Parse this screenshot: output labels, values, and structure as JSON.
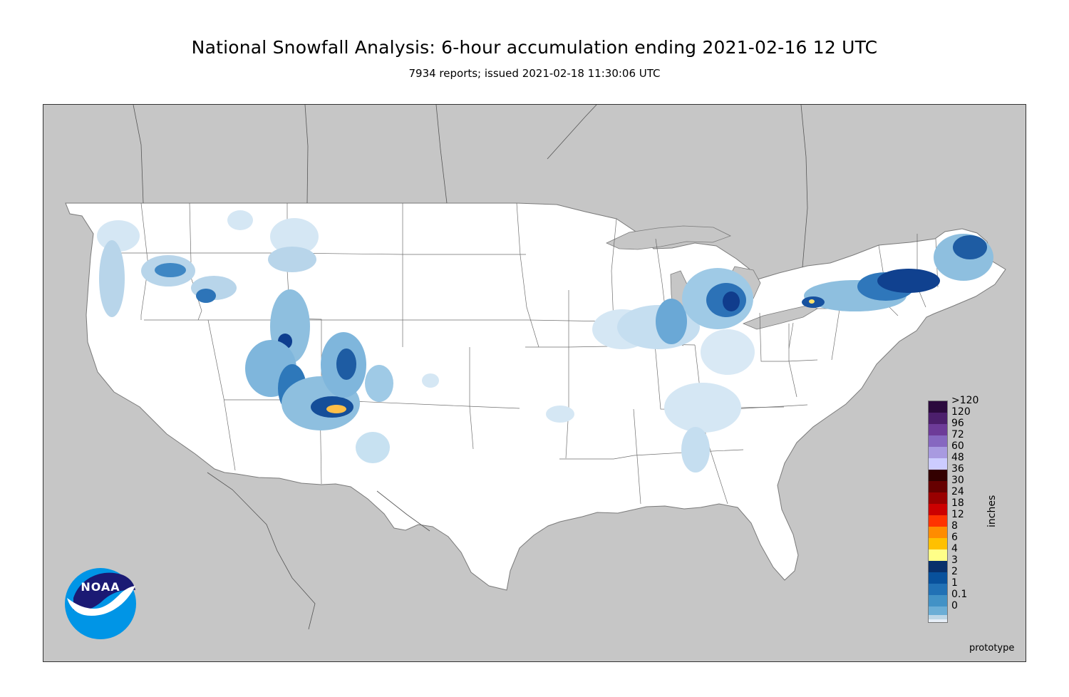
{
  "header": {
    "title": "National Snowfall Analysis: 6-hour accumulation ending 2021-02-16 12 UTC",
    "subtitle": "7934 reports; issued 2021-02-18 11:30:06 UTC"
  },
  "map": {
    "region": "Contiguous United States",
    "land_outside_analysis_color": "#c6c6c6",
    "analysis_area_color": "#ffffff",
    "boundary_color": "#444444",
    "footer_note": "prototype"
  },
  "legend": {
    "unit": "inches",
    "classes": [
      {
        "label": ">120",
        "color": "#2b0a3d"
      },
      {
        "label": "120",
        "color": "#4c1f6c"
      },
      {
        "label": "96",
        "color": "#6d3b98"
      },
      {
        "label": "72",
        "color": "#8667c0"
      },
      {
        "label": "60",
        "color": "#a89ae0"
      },
      {
        "label": "48",
        "color": "#ccccff"
      },
      {
        "label": "36",
        "color": "#330000"
      },
      {
        "label": "30",
        "color": "#660000"
      },
      {
        "label": "24",
        "color": "#990000"
      },
      {
        "label": "18",
        "color": "#cc0000"
      },
      {
        "label": "12",
        "color": "#ff3300"
      },
      {
        "label": "8",
        "color": "#ff8c00"
      },
      {
        "label": "6",
        "color": "#ffc000"
      },
      {
        "label": "4",
        "color": "#ffff88"
      },
      {
        "label": "3",
        "color": "#08306b"
      },
      {
        "label": "2",
        "color": "#08519c"
      },
      {
        "label": "1",
        "color": "#2171b5"
      },
      {
        "label": "0.1",
        "color": "#4292c6"
      },
      {
        "label": "0",
        "color": "#6baed6"
      }
    ],
    "visible_labels": [
      ">120",
      "120",
      "96",
      "72",
      "60",
      "48",
      "36",
      "30",
      "24",
      "18",
      "12",
      "8",
      "6",
      "4",
      "3",
      "2",
      "1",
      "0.1",
      "0"
    ],
    "fill_colors": [
      "#2b0a3d",
      "#4c1f6c",
      "#6d3b98",
      "#8667c0",
      "#a89ae0",
      "#ccccff",
      "#330000",
      "#660000",
      "#990000",
      "#cc0000",
      "#ff3300",
      "#ff8c00",
      "#ffc000",
      "#ffff88",
      "#08306b",
      "#08519c",
      "#2171b5",
      "#4292c6",
      "#6baed6",
      "#bdd7e7",
      "#e6eef7",
      "#ffffff"
    ]
  },
  "logo": {
    "text": "NOAA",
    "outer_color": "#0095e6",
    "inner_color": "#1b1a74"
  }
}
